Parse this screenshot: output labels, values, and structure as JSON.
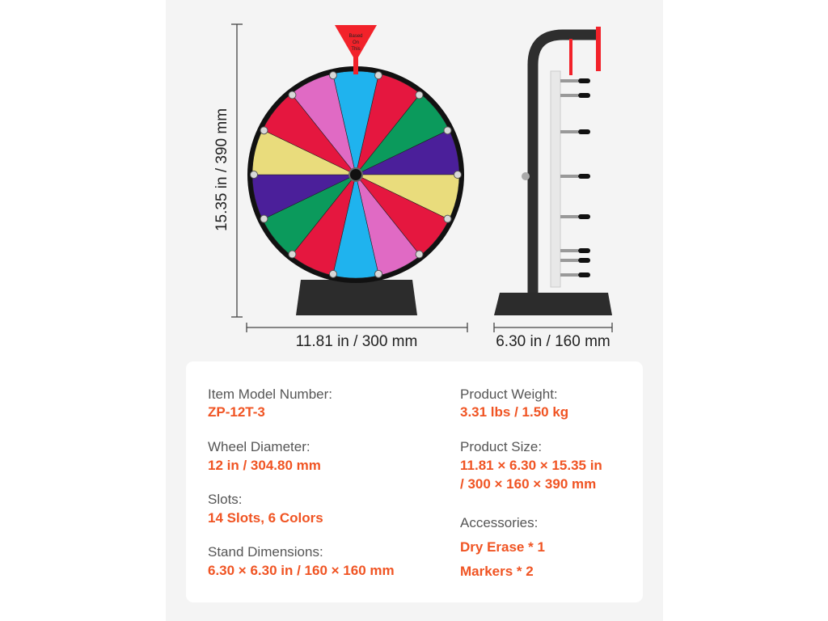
{
  "dimensions": {
    "height": "15.35 in / 390 mm",
    "width": "11.81 in / 300 mm",
    "depth": "6.30 in / 160 mm"
  },
  "pointer_label": "Based On This",
  "wheel": {
    "slots": 14,
    "segment_colors": [
      "#1fb3ee",
      "#e5173f",
      "#0b9a5c",
      "#4b1f9a",
      "#e9dc7c",
      "#e5173f",
      "#e06ac4",
      "#1fb3ee",
      "#e5173f",
      "#0b9a5c",
      "#4b1f9a",
      "#e9dc7c",
      "#e5173f",
      "#e06ac4"
    ],
    "pointer_color": "#f2222a"
  },
  "accent_color": "#f05423",
  "specs": {
    "left": [
      {
        "label": "Item Model Number:",
        "value": "ZP-12T-3"
      },
      {
        "label": "Wheel Diameter:",
        "value": "12 in / 304.80 mm"
      },
      {
        "label": "Slots:",
        "value": "14 Slots, 6 Colors"
      },
      {
        "label": "Stand Dimensions:",
        "value": "6.30 × 6.30 in / 160 × 160 mm"
      }
    ],
    "right": [
      {
        "label": "Product Weight:",
        "value": "3.31 lbs / 1.50 kg"
      },
      {
        "label": "Product Size:",
        "value": "11.81 × 6.30 × 15.35 in",
        "value2": "/ 300 × 160 × 390 mm"
      },
      {
        "label": "Accessories:",
        "value": "Dry Erase * 1",
        "value2": "Markers * 2"
      }
    ]
  }
}
